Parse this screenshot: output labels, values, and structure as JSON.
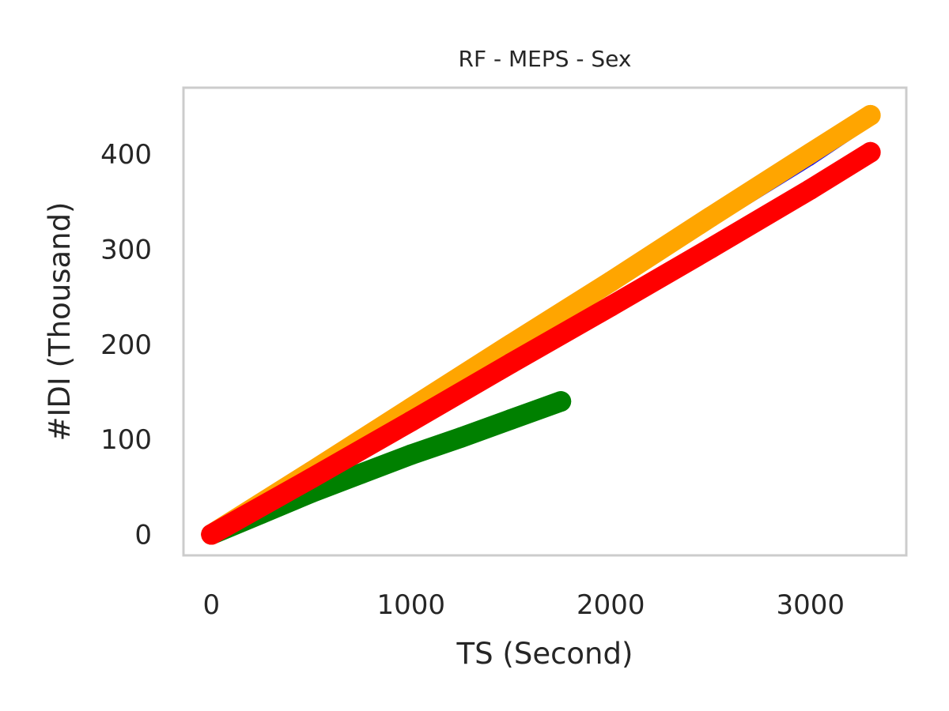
{
  "chart_data": {
    "type": "scatter",
    "title": "RF - MEPS - Sex",
    "xlabel": "TS (Second)",
    "ylabel": "#IDI (Thousand)",
    "xlim": [
      -140,
      3480
    ],
    "ylim": [
      -22,
      470
    ],
    "x_ticks": [
      0,
      1000,
      2000,
      3000
    ],
    "y_ticks": [
      0,
      100,
      200,
      300,
      400
    ],
    "grid": false,
    "series": [
      {
        "color": "#0000ff",
        "x": [
          0,
          500,
          1000,
          1500,
          2000,
          2500,
          3000,
          3300
        ],
        "values": [
          0,
          65,
          131,
          196,
          262,
          328,
          393,
          435
        ]
      },
      {
        "color": "#008000",
        "x": [
          0,
          250,
          500,
          750,
          1000,
          1250,
          1500,
          1750
        ],
        "values": [
          0,
          22,
          44,
          64,
          84,
          102,
          121,
          140
        ]
      },
      {
        "color": "#ffa500",
        "x": [
          0,
          500,
          1000,
          1500,
          2000,
          2500,
          3000,
          3300
        ],
        "values": [
          0,
          66,
          133,
          200,
          266,
          334,
          401,
          441
        ]
      },
      {
        "color": "#ff0000",
        "x": [
          0,
          500,
          1000,
          1500,
          2000,
          2500,
          3000,
          3300
        ],
        "values": [
          0,
          59,
          119,
          180,
          240,
          301,
          363,
          402
        ]
      }
    ]
  },
  "colors": {
    "spine": "#cccccc",
    "text": "#262626",
    "background": "#ffffff"
  }
}
